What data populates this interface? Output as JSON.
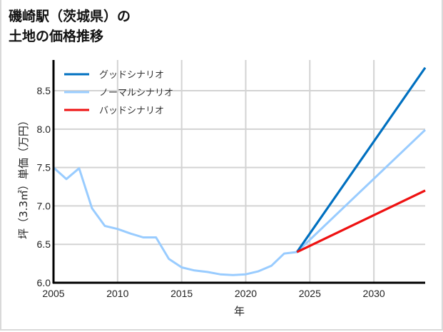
{
  "title": {
    "line1": "磯崎駅（茨城県）の",
    "line2": "土地の価格推移"
  },
  "chart_data": {
    "type": "line",
    "title": "磯崎駅（茨城県）の土地の価格推移",
    "xlabel": "年",
    "ylabel": "坪（3.3㎡）単価（万円）",
    "xlim": [
      2005,
      2034
    ],
    "ylim": [
      6.0,
      8.9
    ],
    "x_ticks": [
      2005,
      2010,
      2015,
      2020,
      2025,
      2030
    ],
    "y_ticks": [
      6.0,
      6.5,
      7.0,
      7.5,
      8.0,
      8.5
    ],
    "grid": true,
    "legend_position": "upper left",
    "series": [
      {
        "name": "グッドシナリオ",
        "color": "#0070c0",
        "x": [
          2024,
          2034
        ],
        "values": [
          6.4,
          8.8
        ]
      },
      {
        "name": "ノーマルシナリオ",
        "color": "#99ccff",
        "x": [
          2005,
          2006,
          2007,
          2008,
          2009,
          2010,
          2011,
          2012,
          2013,
          2014,
          2015,
          2016,
          2017,
          2018,
          2019,
          2020,
          2021,
          2022,
          2023,
          2024,
          2034
        ],
        "values": [
          7.5,
          7.35,
          7.49,
          6.97,
          6.74,
          6.7,
          6.64,
          6.59,
          6.59,
          6.31,
          6.2,
          6.16,
          6.14,
          6.11,
          6.1,
          6.11,
          6.15,
          6.22,
          6.38,
          6.4,
          7.99
        ]
      },
      {
        "name": "バッドシナリオ",
        "color": "#ee1111",
        "x": [
          2024,
          2034
        ],
        "values": [
          6.4,
          7.2
        ]
      }
    ]
  }
}
